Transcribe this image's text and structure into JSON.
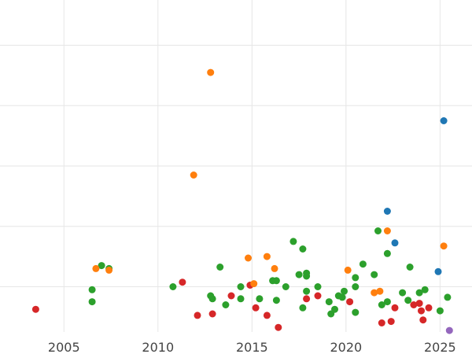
{
  "chart_data": {
    "type": "scatter",
    "title": "",
    "xlabel": "",
    "ylabel": "",
    "xlim": [
      2001.6,
      2026.7
    ],
    "ylim": [
      0,
      110
    ],
    "grid": true,
    "x_ticks": [
      2005,
      2010,
      2015,
      2020,
      2025
    ],
    "x_tick_labels": [
      "2005",
      "2010",
      "2015",
      "2020",
      "2025"
    ],
    "y_gridlines": [
      15,
      35,
      55,
      75,
      95
    ],
    "colors": {
      "green": "#2ca02c",
      "red": "#d62728",
      "orange": "#ff7f0e",
      "blue": "#1f77b4",
      "purple": "#9467bd"
    },
    "series": [
      {
        "color_key": "green",
        "points": [
          [
            2006.5,
            10
          ],
          [
            2006.5,
            14
          ],
          [
            2007.0,
            22
          ],
          [
            2007.4,
            21
          ],
          [
            2010.8,
            15
          ],
          [
            2012.8,
            12
          ],
          [
            2012.9,
            11
          ],
          [
            2013.3,
            21.5
          ],
          [
            2013.6,
            9
          ],
          [
            2014.4,
            15
          ],
          [
            2014.4,
            11
          ],
          [
            2015.4,
            11
          ],
          [
            2016.1,
            17
          ],
          [
            2016.3,
            17
          ],
          [
            2016.3,
            10.5
          ],
          [
            2016.8,
            15
          ],
          [
            2017.2,
            30
          ],
          [
            2017.5,
            19
          ],
          [
            2017.7,
            27.5
          ],
          [
            2017.7,
            8
          ],
          [
            2017.9,
            19.5
          ],
          [
            2017.9,
            18.5
          ],
          [
            2017.9,
            13.5
          ],
          [
            2018.5,
            15
          ],
          [
            2019.1,
            10
          ],
          [
            2019.2,
            6
          ],
          [
            2019.4,
            7.5
          ],
          [
            2019.6,
            12
          ],
          [
            2019.8,
            11.5
          ],
          [
            2019.9,
            13.5
          ],
          [
            2020.5,
            18
          ],
          [
            2020.5,
            15
          ],
          [
            2020.5,
            6.5
          ],
          [
            2020.9,
            22.5
          ],
          [
            2021.5,
            19
          ],
          [
            2021.7,
            33.5
          ],
          [
            2021.9,
            9
          ],
          [
            2022.2,
            10
          ],
          [
            2022.2,
            26
          ],
          [
            2023.0,
            13
          ],
          [
            2023.3,
            10.5
          ],
          [
            2023.4,
            21.5
          ],
          [
            2023.9,
            13
          ],
          [
            2024.2,
            14
          ],
          [
            2025.0,
            7
          ],
          [
            2025.4,
            11.5
          ]
        ]
      },
      {
        "color_key": "red",
        "points": [
          [
            2003.5,
            7.5
          ],
          [
            2011.3,
            16.5
          ],
          [
            2012.1,
            5.5
          ],
          [
            2012.9,
            6
          ],
          [
            2013.9,
            12
          ],
          [
            2014.9,
            15.5
          ],
          [
            2015.2,
            8
          ],
          [
            2015.8,
            5.5
          ],
          [
            2016.4,
            1.5
          ],
          [
            2017.9,
            11
          ],
          [
            2018.5,
            12
          ],
          [
            2020.2,
            10
          ],
          [
            2021.9,
            3
          ],
          [
            2022.4,
            3.5
          ],
          [
            2022.6,
            8
          ],
          [
            2023.6,
            9
          ],
          [
            2023.9,
            9.5
          ],
          [
            2024.0,
            7
          ],
          [
            2024.1,
            4
          ],
          [
            2024.4,
            8
          ]
        ]
      },
      {
        "color_key": "orange",
        "points": [
          [
            2006.7,
            21
          ],
          [
            2007.4,
            20.5
          ],
          [
            2011.9,
            52
          ],
          [
            2012.8,
            86
          ],
          [
            2014.8,
            24.5
          ],
          [
            2015.1,
            16
          ],
          [
            2015.8,
            25
          ],
          [
            2016.2,
            21
          ],
          [
            2020.1,
            20.5
          ],
          [
            2021.5,
            13
          ],
          [
            2021.8,
            13.5
          ],
          [
            2022.2,
            33.5
          ],
          [
            2025.2,
            28.5
          ]
        ]
      },
      {
        "color_key": "blue",
        "points": [
          [
            2022.2,
            40
          ],
          [
            2022.6,
            29.5
          ],
          [
            2024.9,
            20
          ],
          [
            2025.2,
            70
          ]
        ]
      },
      {
        "color_key": "purple",
        "points": [
          [
            2025.5,
            0.5
          ]
        ]
      }
    ]
  }
}
